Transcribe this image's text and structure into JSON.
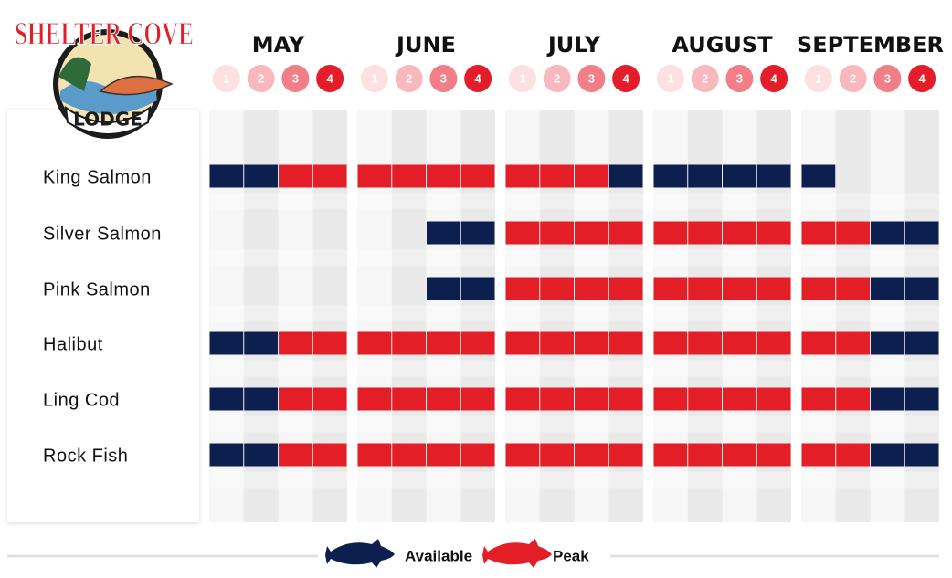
{
  "logo": {
    "title": "SHELTER COVE",
    "subtitle": "LODGE"
  },
  "months": [
    {
      "name": "MAY",
      "weeks": [
        1,
        2,
        3,
        4
      ]
    },
    {
      "name": "JUNE",
      "weeks": [
        1,
        2,
        3,
        4
      ]
    },
    {
      "name": "JULY",
      "weeks": [
        1,
        2,
        3,
        4
      ]
    },
    {
      "name": "AUGUST",
      "weeks": [
        1,
        2,
        3,
        4
      ]
    },
    {
      "name": "SEPTEMBER",
      "weeks": [
        1,
        2,
        3,
        4
      ]
    }
  ],
  "legend": [
    {
      "name": "Available",
      "color": "#0d1f4f"
    },
    {
      "name": "Peak",
      "color": "#e41e26"
    }
  ],
  "species": [
    {
      "name": "King Salmon",
      "weeks": [
        "Available",
        "Available",
        "Peak",
        "Peak",
        "Peak",
        "Peak",
        "Peak",
        "Peak",
        "Peak",
        "Peak",
        "Peak",
        "Available",
        "Available",
        "Available",
        "Available",
        "Available",
        "Available",
        null,
        null,
        null
      ]
    },
    {
      "name": "Silver Salmon",
      "weeks": [
        null,
        null,
        null,
        null,
        null,
        null,
        "Available",
        "Available",
        "Peak",
        "Peak",
        "Peak",
        "Peak",
        "Peak",
        "Peak",
        "Peak",
        "Peak",
        "Peak",
        "Peak",
        "Available",
        "Available"
      ]
    },
    {
      "name": "Pink Salmon",
      "weeks": [
        null,
        null,
        null,
        null,
        null,
        null,
        "Available",
        "Available",
        "Peak",
        "Peak",
        "Peak",
        "Peak",
        "Peak",
        "Peak",
        "Peak",
        "Peak",
        "Peak",
        "Peak",
        "Available",
        "Available"
      ]
    },
    {
      "name": "Halibut",
      "weeks": [
        "Available",
        "Available",
        "Peak",
        "Peak",
        "Peak",
        "Peak",
        "Peak",
        "Peak",
        "Peak",
        "Peak",
        "Peak",
        "Peak",
        "Peak",
        "Peak",
        "Peak",
        "Peak",
        "Peak",
        "Peak",
        "Available",
        "Available"
      ]
    },
    {
      "name": "Ling Cod",
      "weeks": [
        "Available",
        "Available",
        "Peak",
        "Peak",
        "Peak",
        "Peak",
        "Peak",
        "Peak",
        "Peak",
        "Peak",
        "Peak",
        "Peak",
        "Peak",
        "Peak",
        "Peak",
        "Peak",
        "Peak",
        "Peak",
        "Available",
        "Available"
      ]
    },
    {
      "name": "Rock Fish",
      "weeks": [
        "Available",
        "Available",
        "Peak",
        "Peak",
        "Peak",
        "Peak",
        "Peak",
        "Peak",
        "Peak",
        "Peak",
        "Peak",
        "Peak",
        "Peak",
        "Peak",
        "Peak",
        "Peak",
        "Peak",
        "Peak",
        "Available",
        "Available"
      ]
    }
  ]
}
